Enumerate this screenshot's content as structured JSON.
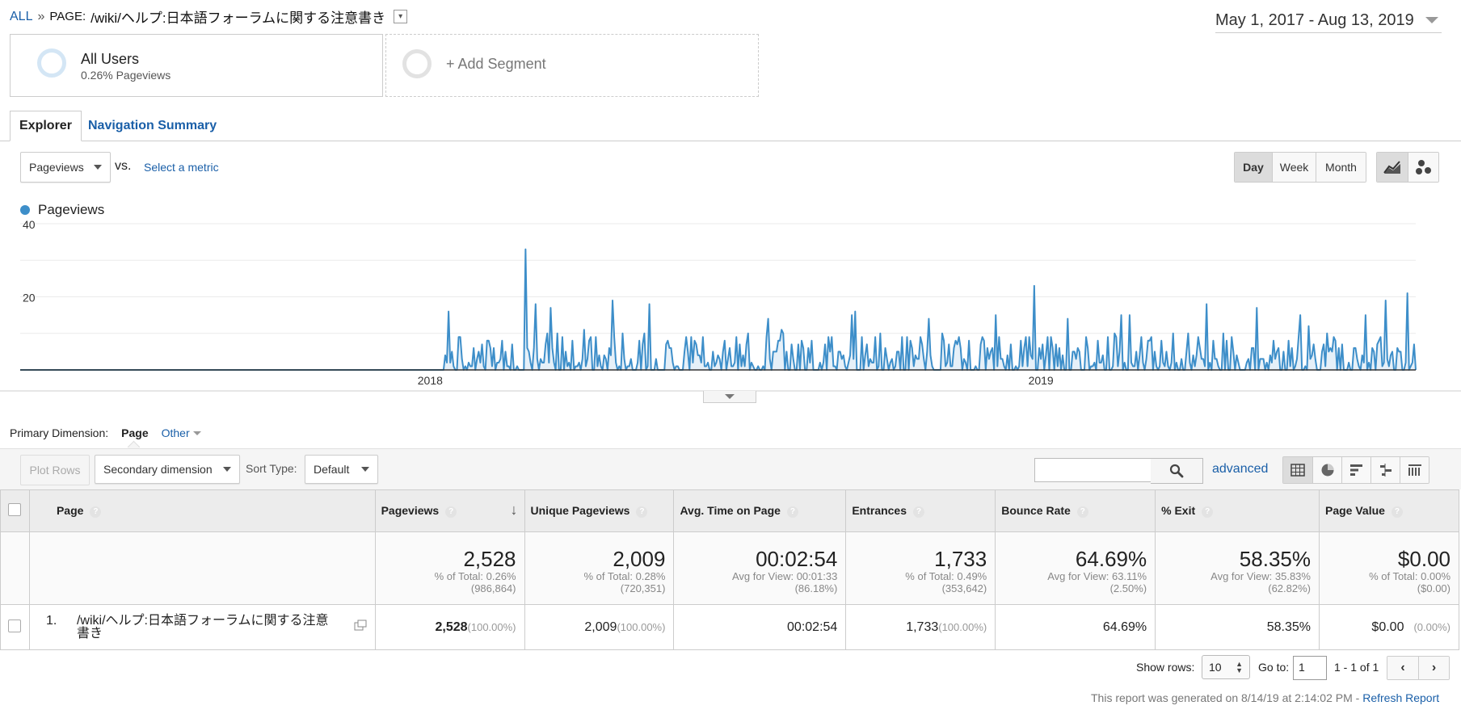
{
  "breadcrumb": {
    "all": "ALL",
    "sep": "»",
    "page_prefix": "PAGE:",
    "page_path": "/wiki/ヘルプ:日本語フォーラムに関する注意書き"
  },
  "date_range": "May 1, 2017 - Aug 13, 2019",
  "segments": {
    "primary_name": "All Users",
    "primary_detail": "0.26% Pageviews",
    "add": "+ Add Segment"
  },
  "tabs": {
    "explorer": "Explorer",
    "nav_summary": "Navigation Summary"
  },
  "metric_select": "Pageviews",
  "vs": "vs.",
  "select_metric": "Select a metric",
  "granularity": {
    "day": "Day",
    "week": "Week",
    "month": "Month",
    "selected": "Day"
  },
  "legend": "Pageviews",
  "colors": {
    "series": "#3d8ec9",
    "fill": "#e6f0f8",
    "link": "#1a5fa8"
  },
  "icons": {
    "line_chart": "line-chart-icon",
    "motion_chart": "motion-chart-icon",
    "search": "search-icon",
    "table": "table-view-icon",
    "pie": "pie-view-icon",
    "bar": "performance-view-icon",
    "comparison": "comparison-view-icon",
    "pivot": "pivot-view-icon"
  },
  "chart_data": {
    "type": "area",
    "series": [
      {
        "name": "Pageviews",
        "spike_days": [
          [
            "2018-01-12",
            16
          ],
          [
            "2018-02-27",
            33
          ],
          [
            "2018-03-05",
            18
          ],
          [
            "2018-03-14",
            17
          ],
          [
            "2018-04-20",
            19
          ],
          [
            "2018-05-12",
            18
          ],
          [
            "2018-07-22",
            14
          ],
          [
            "2018-09-10",
            15
          ],
          [
            "2018-10-26",
            14
          ],
          [
            "2018-12-05",
            15
          ],
          [
            "2018-12-28",
            23
          ],
          [
            "2019-01-17",
            14
          ],
          [
            "2019-02-23",
            15
          ],
          [
            "2019-04-10",
            18
          ],
          [
            "2019-05-10",
            17
          ],
          [
            "2019-06-05",
            15
          ],
          [
            "2019-07-14",
            15
          ],
          [
            "2019-07-26",
            19
          ],
          [
            "2019-08-08",
            21
          ]
        ]
      }
    ],
    "x_start": "2017-05-01",
    "x_end": "2019-08-13",
    "first_nonzero": "2018-01-10",
    "baseline_range": [
      0,
      10
    ],
    "y_ticks": [
      "40",
      "20"
    ],
    "ylim": [
      0,
      40
    ],
    "x_ticks": [
      {
        "label": "2018",
        "date": "2018-01-01"
      },
      {
        "label": "2019",
        "date": "2019-01-01"
      }
    ],
    "grid": true
  },
  "primary_dimension": {
    "label": "Primary Dimension:",
    "current": "Page",
    "other": "Other"
  },
  "toolbar": {
    "plot_rows": "Plot Rows",
    "secondary": "Secondary dimension",
    "sort_label": "Sort Type:",
    "sort_value": "Default",
    "search_value": "",
    "advanced": "advanced"
  },
  "table": {
    "headers": [
      "Page",
      "Pageviews",
      "Unique Pageviews",
      "Avg. Time on Page",
      "Entrances",
      "Bounce Rate",
      "% Exit",
      "Page Value"
    ],
    "totals": [
      {
        "value": "2,528",
        "l1": "% of Total: 0.26%",
        "l2": "(986,864)"
      },
      {
        "value": "2,009",
        "l1": "% of Total: 0.28%",
        "l2": "(720,351)"
      },
      {
        "value": "00:02:54",
        "l1": "Avg for View: 00:01:33",
        "l2": "(86.18%)"
      },
      {
        "value": "1,733",
        "l1": "% of Total: 0.49%",
        "l2": "(353,642)"
      },
      {
        "value": "64.69%",
        "l1": "Avg for View: 63.11%",
        "l2": "(2.50%)"
      },
      {
        "value": "58.35%",
        "l1": "Avg for View: 35.83%",
        "l2": "(62.82%)"
      },
      {
        "value": "$0.00",
        "l1": "% of Total: 0.00%",
        "l2": "($0.00)"
      }
    ],
    "row": {
      "index": "1.",
      "page_line1": "/wiki/ヘルプ:日本語フォーラムに関する注意",
      "page_line2": "書き",
      "pageviews": "2,528",
      "pageviews_pct": "(100.00%)",
      "unique": "2,009",
      "unique_pct": "(100.00%)",
      "avg_time": "00:02:54",
      "entrances": "1,733",
      "entrances_pct": "(100.00%)",
      "bounce": "64.69%",
      "exit": "58.35%",
      "value": "$0.00",
      "value_pct": "(0.00%)"
    }
  },
  "footer": {
    "show_rows": "Show rows:",
    "rows": "10",
    "goto": "Go to:",
    "goto_value": "1",
    "range": "1 - 1 of 1",
    "prev": "‹",
    "next": "›",
    "generated": "This report was generated on 8/14/19 at 2:14:02 PM -",
    "refresh": "Refresh Report"
  }
}
